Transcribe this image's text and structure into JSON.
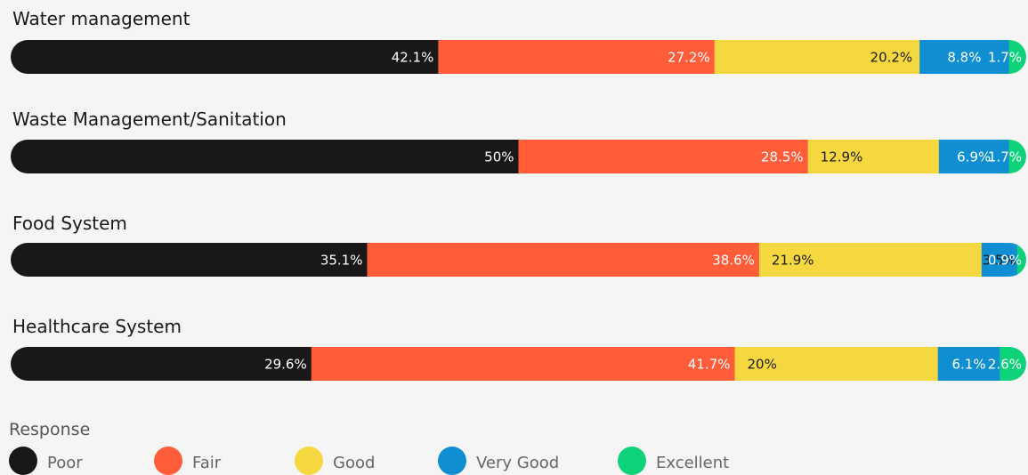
{
  "chart_data": {
    "type": "bar",
    "orientation": "horizontal",
    "stacked": true,
    "normalized": true,
    "categories": [
      "Water management",
      "Waste Management/Sanitation",
      "Food System",
      "Healthcare System"
    ],
    "series": [
      {
        "name": "Poor",
        "color": "#1a1718",
        "values": [
          42.1,
          50,
          35.1,
          29.6
        ],
        "labels": [
          "42.1%",
          "50%",
          "35.1%",
          "29.6%"
        ]
      },
      {
        "name": "Fair",
        "color": "#ff5c3a",
        "values": [
          27.2,
          28.5,
          38.6,
          41.7
        ],
        "labels": [
          "27.2%",
          "28.5%",
          "38.6%",
          "41.7%"
        ]
      },
      {
        "name": "Good",
        "color": "#f5d83f",
        "values": [
          20.2,
          12.9,
          21.9,
          20
        ],
        "labels": [
          "20.2%",
          "12.9%",
          "21.9%",
          "20%"
        ]
      },
      {
        "name": "Very Good",
        "color": "#0f8fd1",
        "values": [
          8.8,
          6.9,
          3.5,
          6.1
        ],
        "labels": [
          "8.8%",
          "6.9%",
          "3.5%",
          "6.1%"
        ]
      },
      {
        "name": "Excellent",
        "color": "#0ed27a",
        "values": [
          1.7,
          1.7,
          0.9,
          2.6
        ],
        "labels": [
          "1.7%",
          "1.7%",
          "0.9%",
          "2.6%"
        ]
      }
    ],
    "legend": {
      "title": "Response",
      "position": "bottom-left"
    },
    "grid": false
  }
}
